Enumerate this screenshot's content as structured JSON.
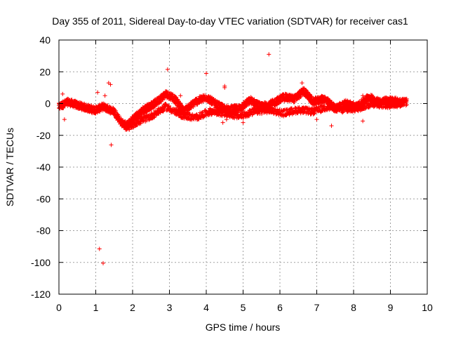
{
  "chart_data": {
    "type": "scatter",
    "title": "Day 355 of 2011, Sidereal Day-to-day VTEC variation (SDTVAR) for receiver cas1",
    "xlabel": "GPS time / hours",
    "ylabel": "SDTVAR / TECUs",
    "xlim": [
      0,
      10
    ],
    "ylim": [
      -120,
      40
    ],
    "xticks": [
      0,
      1,
      2,
      3,
      4,
      5,
      6,
      7,
      8,
      9,
      10
    ],
    "yticks": [
      -120,
      -100,
      -80,
      -60,
      -40,
      -20,
      0,
      20,
      40
    ],
    "grid": true,
    "marker": "+",
    "series_color": "#ff0000",
    "band_center": [
      [
        0.0,
        -2
      ],
      [
        0.25,
        1
      ],
      [
        0.5,
        -1
      ],
      [
        0.8,
        -3
      ],
      [
        1.0,
        -4
      ],
      [
        1.2,
        -2
      ],
      [
        1.5,
        -5
      ],
      [
        1.7,
        -12
      ],
      [
        1.85,
        -14
      ],
      [
        2.0,
        -10
      ],
      [
        2.3,
        -4
      ],
      [
        2.6,
        0
      ],
      [
        2.9,
        6
      ],
      [
        3.1,
        4
      ],
      [
        3.4,
        -5
      ],
      [
        3.7,
        1
      ],
      [
        4.0,
        4
      ],
      [
        4.3,
        -1
      ],
      [
        4.6,
        -4
      ],
      [
        4.9,
        -3
      ],
      [
        5.2,
        2
      ],
      [
        5.5,
        -2
      ],
      [
        5.8,
        0
      ],
      [
        6.1,
        4
      ],
      [
        6.4,
        3
      ],
      [
        6.65,
        8
      ],
      [
        6.9,
        1
      ],
      [
        7.2,
        3
      ],
      [
        7.5,
        -3
      ],
      [
        7.8,
        0
      ],
      [
        8.1,
        -2
      ],
      [
        8.4,
        4
      ],
      [
        8.7,
        1
      ],
      [
        9.0,
        2
      ],
      [
        9.25,
        1
      ],
      [
        9.45,
        1
      ]
    ],
    "band_secondary": [
      [
        1.8,
        -16
      ],
      [
        2.1,
        -12
      ],
      [
        2.5,
        -8
      ],
      [
        2.9,
        -2
      ],
      [
        3.3,
        -7
      ],
      [
        3.7,
        -9
      ],
      [
        4.1,
        -5
      ],
      [
        4.5,
        -6
      ],
      [
        4.9,
        -8
      ],
      [
        5.3,
        -5
      ],
      [
        5.7,
        -4
      ],
      [
        6.1,
        -6
      ],
      [
        6.5,
        -4
      ],
      [
        6.9,
        -5
      ],
      [
        7.3,
        -2
      ],
      [
        7.7,
        -4
      ],
      [
        8.1,
        -3
      ],
      [
        8.5,
        0
      ],
      [
        8.9,
        -1
      ],
      [
        9.3,
        0
      ]
    ],
    "outliers": [
      [
        0.1,
        6
      ],
      [
        0.15,
        -10
      ],
      [
        1.05,
        7
      ],
      [
        1.1,
        -91.5
      ],
      [
        1.2,
        -100.5
      ],
      [
        1.35,
        13
      ],
      [
        1.4,
        12
      ],
      [
        1.42,
        -26
      ],
      [
        2.95,
        21.5
      ],
      [
        4.0,
        19
      ],
      [
        4.5,
        11
      ],
      [
        4.5,
        10
      ],
      [
        4.45,
        -12
      ],
      [
        4.55,
        -10
      ],
      [
        5.7,
        31
      ],
      [
        7.4,
        -14
      ],
      [
        8.25,
        -11
      ],
      [
        8.25,
        5
      ],
      [
        7.0,
        -10
      ],
      [
        5.0,
        -12
      ],
      [
        1.25,
        5
      ],
      [
        0.9,
        -6
      ],
      [
        3.3,
        5
      ],
      [
        6.6,
        13
      ]
    ]
  }
}
